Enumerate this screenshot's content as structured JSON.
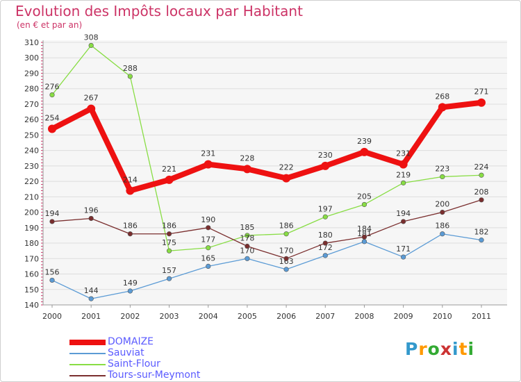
{
  "title": "Evolution des Impôts locaux par Habitant",
  "subtitle": "(en € et par an)",
  "logo": {
    "text": "Proxiti",
    "letters": [
      "P",
      "r",
      "o",
      "x",
      "i",
      "t",
      "i"
    ],
    "colors": [
      "#3399cc",
      "#ff9900",
      "#33aa33",
      "#cc3333",
      "#3399cc",
      "#ff9900",
      "#33aa33"
    ]
  },
  "chart_data": {
    "type": "line",
    "title": "Evolution des Impôts locaux par Habitant",
    "subtitle": "(en € et par an)",
    "xlabel": "",
    "ylabel": "",
    "x": [
      "2000",
      "2001",
      "2002",
      "2003",
      "2004",
      "2005",
      "2006",
      "2007",
      "2008",
      "2009",
      "2010",
      "2011"
    ],
    "ylim": [
      140,
      310
    ],
    "yticks": [
      140,
      150,
      160,
      170,
      180,
      190,
      200,
      210,
      220,
      230,
      240,
      250,
      260,
      270,
      280,
      290,
      300,
      310
    ],
    "grid": true,
    "legend_position": "bottom-left",
    "series": [
      {
        "name": "Sauviat",
        "color": "#5b9bd5",
        "emphasis": false,
        "values": [
          156,
          144,
          149,
          157,
          165,
          170,
          163,
          172,
          181,
          171,
          186,
          182
        ],
        "labels": [
          "156",
          "144",
          "149",
          "157",
          "165",
          "170",
          "163",
          "172",
          "181",
          "171",
          "186",
          "182"
        ]
      },
      {
        "name": "Saint-Flour",
        "color": "#88dd44",
        "emphasis": false,
        "values": [
          276,
          308,
          288,
          175,
          177,
          185,
          186,
          197,
          205,
          219,
          223,
          224
        ],
        "labels": [
          "276",
          "308",
          "288",
          "175",
          "177",
          "185",
          "186",
          "197",
          "205",
          "219",
          "223",
          "224"
        ]
      },
      {
        "name": "Tours-sur-Meymont",
        "color": "#7a2e2e",
        "emphasis": false,
        "values": [
          194,
          196,
          186,
          186,
          190,
          178,
          170,
          180,
          184,
          194,
          200,
          208
        ],
        "labels": [
          "194",
          "196",
          "186",
          "186",
          "190",
          "178",
          "170",
          "180",
          "184",
          "194",
          "200",
          "208"
        ]
      },
      {
        "name": "DOMAIZE",
        "color": "#ee1111",
        "emphasis": true,
        "values": [
          254,
          267,
          214,
          221,
          231,
          228,
          222,
          230,
          239,
          231,
          268,
          271
        ],
        "labels": [
          "254",
          "267",
          "214",
          "221",
          "231",
          "228",
          "222",
          "230",
          "239",
          "231",
          "268",
          "271"
        ]
      }
    ],
    "legend_order": [
      "DOMAIZE",
      "Sauviat",
      "Saint-Flour",
      "Tours-sur-Meymont"
    ]
  }
}
